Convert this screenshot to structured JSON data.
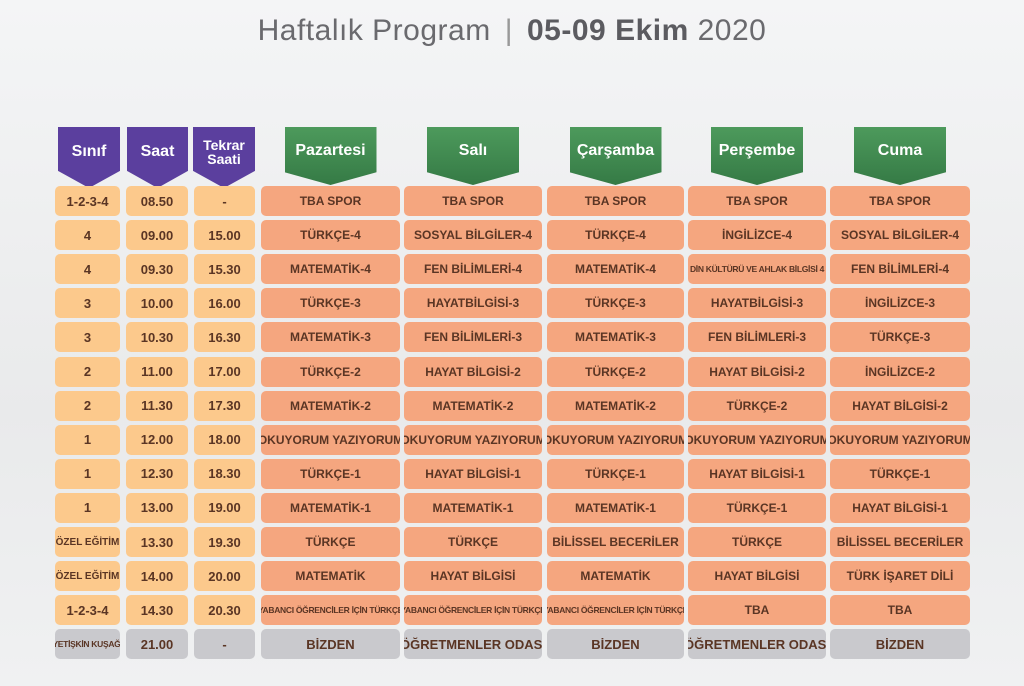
{
  "title": {
    "prefix": "Haftalık Program",
    "separator": "|",
    "date_bold": "05-09 Ekim",
    "year": "2020"
  },
  "headers": {
    "sinif": "Sınıf",
    "saat": "Saat",
    "tekrar": "Tekrar Saati",
    "days": [
      "Pazartesi",
      "Salı",
      "Çarşamba",
      "Perşembe",
      "Cuma"
    ]
  },
  "rows": [
    {
      "sinif": "1-2-3-4",
      "saat": "08.50",
      "tekrar": "-",
      "days": [
        "TBA SPOR",
        "TBA SPOR",
        "TBA SPOR",
        "TBA SPOR",
        "TBA SPOR"
      ]
    },
    {
      "sinif": "4",
      "saat": "09.00",
      "tekrar": "15.00",
      "days": [
        "TÜRKÇE-4",
        "SOSYAL BİLGİLER-4",
        "TÜRKÇE-4",
        "İNGİLİZCE-4",
        "SOSYAL BİLGİLER-4"
      ]
    },
    {
      "sinif": "4",
      "saat": "09.30",
      "tekrar": "15.30",
      "days": [
        "MATEMATİK-4",
        "FEN BİLİMLERİ-4",
        "MATEMATİK-4",
        "DİN KÜLTÜRÜ VE AHLAK BİLGİSİ 4",
        "FEN BİLİMLERİ-4"
      ]
    },
    {
      "sinif": "3",
      "saat": "10.00",
      "tekrar": "16.00",
      "days": [
        "TÜRKÇE-3",
        "HAYATBİLGİSİ-3",
        "TÜRKÇE-3",
        "HAYATBİLGİSİ-3",
        "İNGİLİZCE-3"
      ]
    },
    {
      "sinif": "3",
      "saat": "10.30",
      "tekrar": "16.30",
      "days": [
        "MATEMATİK-3",
        "FEN BİLİMLERİ-3",
        "MATEMATİK-3",
        "FEN BİLİMLERİ-3",
        "TÜRKÇE-3"
      ]
    },
    {
      "sinif": "2",
      "saat": "11.00",
      "tekrar": "17.00",
      "days": [
        "TÜRKÇE-2",
        "HAYAT BİLGİSİ-2",
        "TÜRKÇE-2",
        "HAYAT BİLGİSİ-2",
        "İNGİLİZCE-2"
      ]
    },
    {
      "sinif": "2",
      "saat": "11.30",
      "tekrar": "17.30",
      "days": [
        "MATEMATİK-2",
        "MATEMATİK-2",
        "MATEMATİK-2",
        "TÜRKÇE-2",
        "HAYAT BİLGİSİ-2"
      ]
    },
    {
      "sinif": "1",
      "saat": "12.00",
      "tekrar": "18.00",
      "days": [
        "OKUYORUM YAZIYORUM",
        "OKUYORUM YAZIYORUM",
        "OKUYORUM YAZIYORUM",
        "OKUYORUM YAZIYORUM",
        "OKUYORUM YAZIYORUM"
      ]
    },
    {
      "sinif": "1",
      "saat": "12.30",
      "tekrar": "18.30",
      "days": [
        "TÜRKÇE-1",
        "HAYAT BİLGİSİ-1",
        "TÜRKÇE-1",
        "HAYAT BİLGİSİ-1",
        "TÜRKÇE-1"
      ]
    },
    {
      "sinif": "1",
      "saat": "13.00",
      "tekrar": "19.00",
      "days": [
        "MATEMATİK-1",
        "MATEMATİK-1",
        "MATEMATİK-1",
        "TÜRKÇE-1",
        "HAYAT BİLGİSİ-1"
      ]
    },
    {
      "sinif": "ÖZEL EĞİTİM",
      "saat": "13.30",
      "tekrar": "19.30",
      "days": [
        "TÜRKÇE",
        "TÜRKÇE",
        "BİLİSSEL BECERİLER",
        "TÜRKÇE",
        "BİLİSSEL BECERİLER"
      ]
    },
    {
      "sinif": "ÖZEL EĞİTİM",
      "saat": "14.00",
      "tekrar": "20.00",
      "days": [
        "MATEMATİK",
        "HAYAT BİLGİSİ",
        "MATEMATİK",
        "HAYAT BİLGİSİ",
        "TÜRK İŞARET DİLİ"
      ]
    },
    {
      "sinif": "1-2-3-4",
      "saat": "14.30",
      "tekrar": "20.30",
      "days": [
        "YABANCI ÖĞRENCİLER İÇİN TÜRKÇE",
        "YABANCI ÖĞRENCİLER İÇİN TÜRKÇE",
        "YABANCI ÖĞRENCİLER İÇİN TÜRKÇE",
        "TBA",
        "TBA"
      ]
    },
    {
      "sinif": "YETİŞKİN KUŞAĞI",
      "saat": "21.00",
      "tekrar": "-",
      "days": [
        "BİZDEN",
        "ÖĞRETMENLER ODASI",
        "BİZDEN",
        "ÖĞRETMENLER ODASI",
        "BİZDEN"
      ]
    }
  ]
}
